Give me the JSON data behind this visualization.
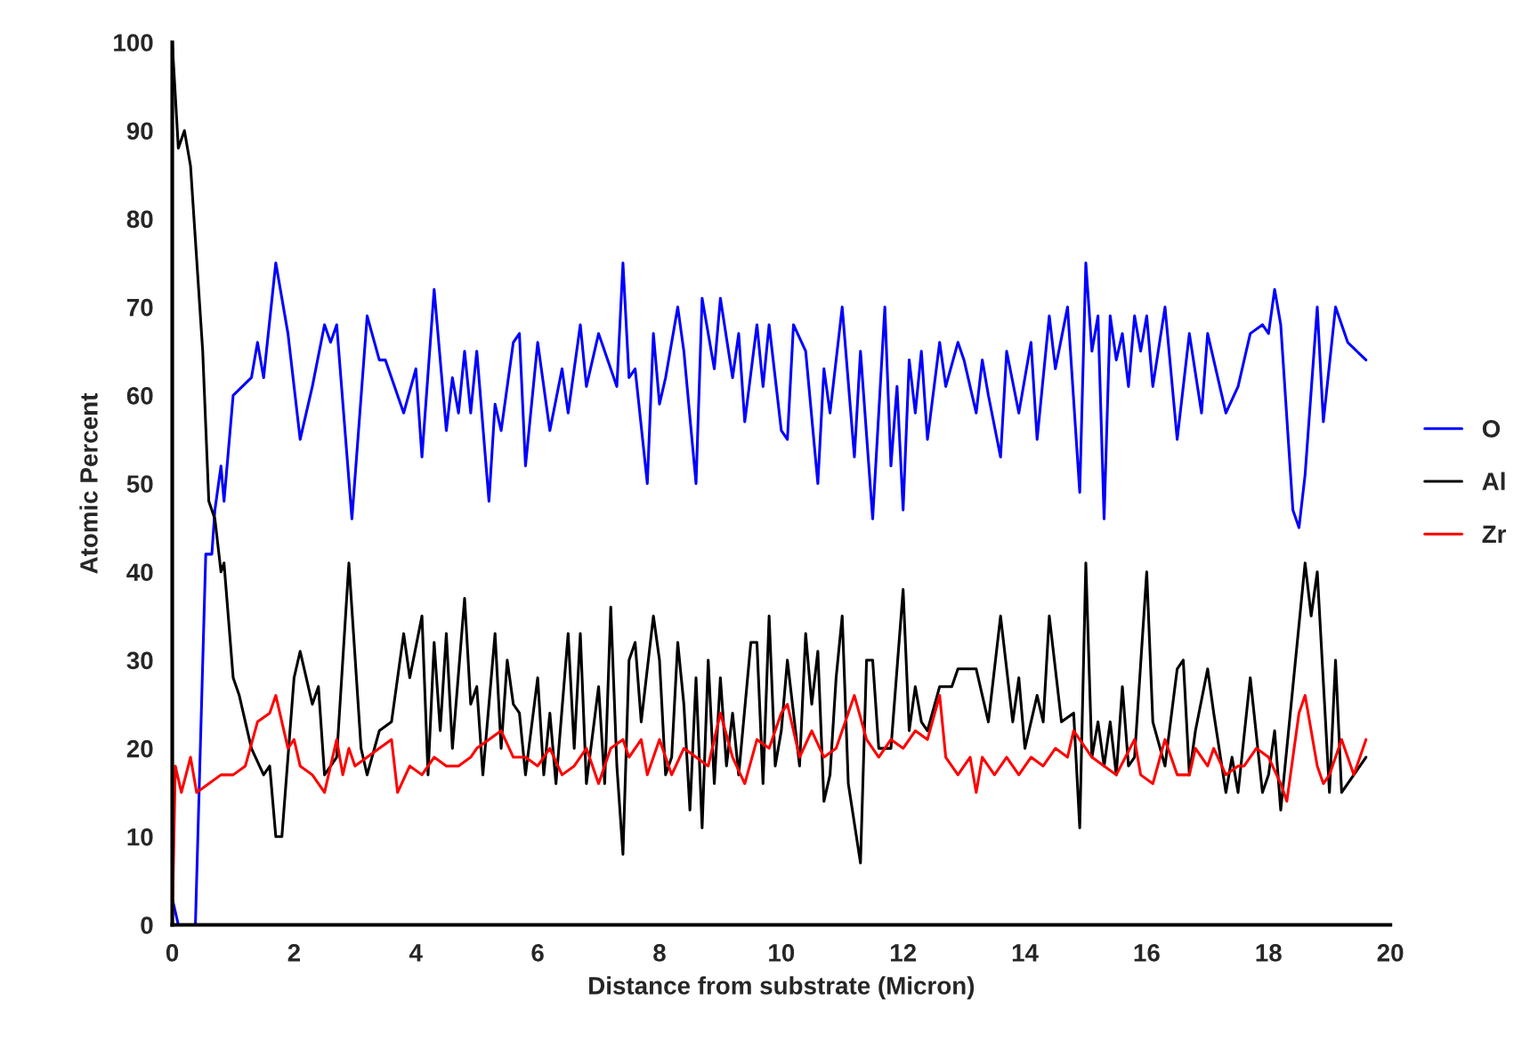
{
  "chart_data": {
    "type": "line",
    "xlabel": "Distance from substrate (Micron)",
    "ylabel": "Atomic Percent",
    "xlim": [
      0,
      20
    ],
    "ylim": [
      0,
      100
    ],
    "xticks": [
      0,
      2,
      4,
      6,
      8,
      10,
      12,
      14,
      16,
      18,
      20
    ],
    "yticks": [
      0,
      10,
      20,
      30,
      40,
      50,
      60,
      70,
      80,
      90,
      100
    ],
    "grid": false,
    "legend": "right",
    "marker": "none",
    "line_style": "solid",
    "series": [
      {
        "name": "O",
        "color": "#0000ff",
        "x": [
          0,
          0.1,
          0.38,
          0.55,
          0.65,
          0.7,
          0.8,
          0.85,
          1.0,
          1.3,
          1.4,
          1.5,
          1.7,
          1.9,
          2.1,
          2.3,
          2.5,
          2.6,
          2.7,
          2.95,
          3.2,
          3.4,
          3.5,
          3.8,
          4.0,
          4.1,
          4.3,
          4.5,
          4.6,
          4.7,
          4.8,
          4.9,
          5.0,
          5.2,
          5.3,
          5.4,
          5.6,
          5.7,
          5.8,
          6.0,
          6.2,
          6.4,
          6.5,
          6.7,
          6.8,
          7.0,
          7.1,
          7.3,
          7.4,
          7.5,
          7.6,
          7.8,
          7.9,
          8.0,
          8.1,
          8.3,
          8.4,
          8.6,
          8.7,
          8.9,
          9.0,
          9.2,
          9.3,
          9.4,
          9.6,
          9.7,
          9.8,
          10.0,
          10.1,
          10.2,
          10.4,
          10.6,
          10.7,
          10.8,
          11.0,
          11.2,
          11.3,
          11.5,
          11.7,
          11.8,
          11.9,
          12.0,
          12.1,
          12.2,
          12.3,
          12.4,
          12.6,
          12.7,
          12.9,
          13.0,
          13.2,
          13.3,
          13.4,
          13.6,
          13.7,
          13.9,
          14.1,
          14.2,
          14.4,
          14.5,
          14.7,
          14.9,
          15.0,
          15.1,
          15.2,
          15.3,
          15.4,
          15.5,
          15.6,
          15.7,
          15.8,
          15.9,
          16.0,
          16.1,
          16.3,
          16.5,
          16.7,
          16.9,
          17.0,
          17.3,
          17.5,
          17.7,
          17.9,
          18.0,
          18.1,
          18.2,
          18.4,
          18.5,
          18.6,
          18.8,
          18.9,
          19.1,
          19.3,
          19.6
        ],
        "values": [
          3,
          0,
          0,
          42,
          42,
          47,
          52,
          48,
          60,
          62,
          66,
          62,
          75,
          67,
          55,
          61,
          68,
          66,
          68,
          46,
          69,
          64,
          64,
          58,
          63,
          53,
          72,
          56,
          62,
          58,
          65,
          58,
          65,
          48,
          59,
          56,
          66,
          67,
          52,
          66,
          56,
          63,
          58,
          68,
          61,
          67,
          65,
          61,
          75,
          62,
          63,
          50,
          67,
          59,
          62,
          70,
          65,
          50,
          71,
          63,
          71,
          62,
          67,
          57,
          68,
          61,
          68,
          56,
          55,
          68,
          65,
          50,
          63,
          58,
          70,
          53,
          65,
          46,
          70,
          52,
          61,
          47,
          64,
          58,
          65,
          55,
          66,
          61,
          66,
          64,
          58,
          64,
          60,
          53,
          65,
          58,
          66,
          55,
          69,
          63,
          70,
          49,
          75,
          65,
          69,
          46,
          69,
          64,
          67,
          61,
          69,
          65,
          69,
          61,
          70,
          55,
          67,
          58,
          67,
          58,
          61,
          67,
          68,
          67,
          72,
          68,
          47,
          45,
          51,
          70,
          57,
          70,
          66,
          64
        ]
      },
      {
        "name": "Al",
        "color": "#000000",
        "x": [
          0,
          0.1,
          0.2,
          0.3,
          0.5,
          0.6,
          0.7,
          0.8,
          0.85,
          1.0,
          1.1,
          1.3,
          1.5,
          1.6,
          1.7,
          1.8,
          2.0,
          2.1,
          2.3,
          2.4,
          2.5,
          2.7,
          2.9,
          3.1,
          3.2,
          3.4,
          3.6,
          3.8,
          3.9,
          4.1,
          4.2,
          4.3,
          4.4,
          4.5,
          4.6,
          4.8,
          4.9,
          5.0,
          5.1,
          5.3,
          5.4,
          5.5,
          5.6,
          5.7,
          5.8,
          6.0,
          6.1,
          6.2,
          6.3,
          6.5,
          6.6,
          6.7,
          6.8,
          7.0,
          7.1,
          7.2,
          7.3,
          7.4,
          7.5,
          7.6,
          7.7,
          7.9,
          8.0,
          8.1,
          8.2,
          8.3,
          8.4,
          8.5,
          8.6,
          8.7,
          8.8,
          8.9,
          9.0,
          9.1,
          9.2,
          9.3,
          9.5,
          9.6,
          9.7,
          9.8,
          9.9,
          10.0,
          10.1,
          10.3,
          10.4,
          10.5,
          10.6,
          10.7,
          10.8,
          10.9,
          11.0,
          11.1,
          11.3,
          11.4,
          11.5,
          11.6,
          11.8,
          12.0,
          12.1,
          12.2,
          12.3,
          12.4,
          12.6,
          12.8,
          12.9,
          13.0,
          13.2,
          13.4,
          13.6,
          13.8,
          13.9,
          14.0,
          14.2,
          14.3,
          14.4,
          14.6,
          14.8,
          14.9,
          15.0,
          15.1,
          15.2,
          15.3,
          15.4,
          15.5,
          15.6,
          15.7,
          15.8,
          16.0,
          16.1,
          16.3,
          16.5,
          16.6,
          16.7,
          16.8,
          17.0,
          17.1,
          17.3,
          17.4,
          17.5,
          17.7,
          17.9,
          18.0,
          18.1,
          18.2,
          18.6,
          18.7,
          18.8,
          19.0,
          19.1,
          19.2,
          19.4,
          19.6
        ],
        "values": [
          100,
          88,
          90,
          86,
          65,
          48,
          46,
          40,
          41,
          28,
          26,
          20,
          17,
          18,
          10,
          10,
          28,
          31,
          25,
          27,
          17,
          19,
          41,
          20,
          17,
          22,
          23,
          33,
          28,
          35,
          17,
          32,
          22,
          33,
          20,
          37,
          25,
          27,
          17,
          33,
          20,
          30,
          25,
          24,
          17,
          28,
          17,
          24,
          16,
          33,
          20,
          33,
          16,
          27,
          16,
          36,
          18,
          8,
          30,
          32,
          23,
          35,
          30,
          17,
          19,
          32,
          25,
          13,
          28,
          11,
          30,
          16,
          28,
          18,
          24,
          17,
          32,
          32,
          16,
          35,
          18,
          22,
          30,
          18,
          33,
          25,
          31,
          14,
          17,
          28,
          35,
          16,
          7,
          30,
          30,
          20,
          20,
          38,
          22,
          27,
          23,
          22,
          27,
          27,
          29,
          29,
          29,
          23,
          35,
          23,
          28,
          20,
          26,
          23,
          35,
          23,
          24,
          11,
          41,
          19,
          23,
          18,
          23,
          17,
          27,
          18,
          19,
          40,
          23,
          18,
          29,
          30,
          17,
          22,
          29,
          24,
          15,
          19,
          15,
          28,
          15,
          17,
          22,
          13,
          41,
          35,
          40,
          15,
          30,
          15,
          17,
          19
        ]
      },
      {
        "name": "Zr",
        "color": "#ff0000",
        "x": [
          0,
          0.05,
          0.15,
          0.3,
          0.4,
          0.6,
          0.8,
          1.0,
          1.2,
          1.4,
          1.6,
          1.7,
          1.9,
          2.0,
          2.1,
          2.3,
          2.5,
          2.7,
          2.8,
          2.9,
          3.0,
          3.2,
          3.4,
          3.6,
          3.7,
          3.9,
          4.1,
          4.3,
          4.5,
          4.7,
          4.9,
          5.0,
          5.2,
          5.4,
          5.6,
          5.8,
          6.0,
          6.2,
          6.4,
          6.6,
          6.8,
          7.0,
          7.2,
          7.4,
          7.5,
          7.7,
          7.8,
          8.0,
          8.2,
          8.4,
          8.6,
          8.8,
          9.0,
          9.2,
          9.4,
          9.6,
          9.8,
          10.0,
          10.1,
          10.3,
          10.5,
          10.7,
          10.9,
          11.0,
          11.2,
          11.4,
          11.6,
          11.8,
          12.0,
          12.2,
          12.4,
          12.6,
          12.7,
          12.9,
          13.1,
          13.2,
          13.3,
          13.5,
          13.7,
          13.9,
          14.1,
          14.3,
          14.5,
          14.7,
          14.8,
          15.0,
          15.1,
          15.3,
          15.5,
          15.8,
          15.9,
          16.1,
          16.3,
          16.5,
          16.7,
          16.8,
          17.0,
          17.1,
          17.3,
          17.5,
          17.6,
          17.8,
          18.0,
          18.2,
          18.3,
          18.5,
          18.6,
          18.8,
          18.9,
          19.0,
          19.2,
          19.4,
          19.6
        ],
        "values": [
          0,
          18,
          15,
          19,
          15,
          16,
          17,
          17,
          18,
          23,
          24,
          26,
          20,
          21,
          18,
          17,
          15,
          21,
          17,
          20,
          18,
          19,
          20,
          21,
          15,
          18,
          17,
          19,
          18,
          18,
          19,
          20,
          21,
          22,
          19,
          19,
          18,
          20,
          17,
          18,
          20,
          16,
          20,
          21,
          19,
          21,
          17,
          21,
          17,
          20,
          19,
          18,
          24,
          19,
          16,
          21,
          20,
          24,
          25,
          19,
          22,
          19,
          20,
          22,
          26,
          21,
          19,
          21,
          20,
          22,
          21,
          26,
          19,
          17,
          19,
          15,
          19,
          17,
          19,
          17,
          19,
          18,
          20,
          19,
          22,
          20,
          19,
          18,
          17,
          21,
          17,
          16,
          21,
          17,
          17,
          20,
          18,
          20,
          17,
          18,
          18,
          20,
          19,
          16,
          14,
          24,
          26,
          18,
          16,
          17,
          21,
          17,
          21
        ]
      }
    ]
  }
}
